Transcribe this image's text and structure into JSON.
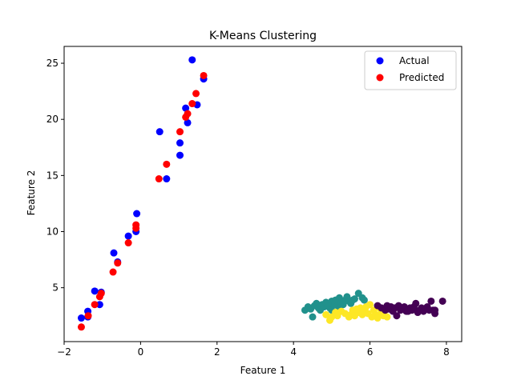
{
  "chart_data": {
    "type": "scatter",
    "title": "K-Means Clustering",
    "xlabel": "Feature 1",
    "ylabel": "Feature 2",
    "xlim": [
      -2,
      8.4
    ],
    "ylim": [
      0.2,
      26.5
    ],
    "xticks": [
      -2,
      0,
      2,
      4,
      6,
      8
    ],
    "yticks": [
      5,
      10,
      15,
      20,
      25
    ],
    "grid": false,
    "legend": "top-right",
    "series": [
      {
        "name": "Actual",
        "color": "#0000ff",
        "points": [
          [
            -1.55,
            2.3
          ],
          [
            -1.38,
            2.9
          ],
          [
            -1.38,
            2.4
          ],
          [
            -1.2,
            4.7
          ],
          [
            -1.07,
            3.5
          ],
          [
            -1.03,
            4.6
          ],
          [
            -0.7,
            8.1
          ],
          [
            -0.6,
            7.3
          ],
          [
            -0.32,
            9.6
          ],
          [
            -0.12,
            10.0
          ],
          [
            -0.1,
            11.6
          ],
          [
            0.5,
            18.9
          ],
          [
            0.68,
            14.7
          ],
          [
            1.03,
            16.8
          ],
          [
            1.03,
            17.9
          ],
          [
            1.18,
            21.0
          ],
          [
            1.23,
            19.7
          ],
          [
            1.35,
            25.3
          ],
          [
            1.48,
            21.3
          ],
          [
            1.65,
            23.6
          ]
        ]
      },
      {
        "name": "Predicted",
        "color": "#ff0000",
        "points": [
          [
            -1.55,
            1.5
          ],
          [
            -1.37,
            2.5
          ],
          [
            -1.2,
            3.5
          ],
          [
            -1.07,
            4.2
          ],
          [
            -1.03,
            4.5
          ],
          [
            -0.72,
            6.4
          ],
          [
            -0.6,
            7.2
          ],
          [
            -0.32,
            9.0
          ],
          [
            -0.12,
            10.3
          ],
          [
            -0.12,
            10.6
          ],
          [
            0.48,
            14.7
          ],
          [
            0.68,
            16.0
          ],
          [
            1.03,
            18.9
          ],
          [
            1.18,
            20.2
          ],
          [
            1.23,
            20.5
          ],
          [
            1.35,
            21.4
          ],
          [
            1.45,
            22.3
          ],
          [
            1.65,
            23.9
          ]
        ]
      }
    ],
    "clusters": [
      {
        "color": "#21918c",
        "points": [
          [
            4.3,
            3.0
          ],
          [
            4.38,
            3.3
          ],
          [
            4.45,
            3.1
          ],
          [
            4.5,
            2.4
          ],
          [
            4.55,
            3.4
          ],
          [
            4.6,
            3.6
          ],
          [
            4.65,
            3.2
          ],
          [
            4.7,
            3.0
          ],
          [
            4.75,
            3.5
          ],
          [
            4.8,
            3.3
          ],
          [
            4.85,
            3.7
          ],
          [
            4.9,
            3.4
          ],
          [
            4.95,
            3.2
          ],
          [
            5.0,
            3.8
          ],
          [
            5.05,
            3.5
          ],
          [
            5.1,
            3.9
          ],
          [
            5.15,
            3.4
          ],
          [
            5.2,
            4.1
          ],
          [
            5.25,
            3.7
          ],
          [
            5.3,
            3.5
          ],
          [
            5.35,
            3.9
          ],
          [
            5.4,
            4.2
          ],
          [
            5.45,
            3.8
          ],
          [
            5.5,
            3.6
          ],
          [
            5.55,
            3.9
          ],
          [
            5.6,
            4.0
          ],
          [
            5.7,
            4.5
          ],
          [
            5.8,
            4.1
          ],
          [
            5.85,
            3.9
          ],
          [
            5.0,
            3.0
          ],
          [
            4.9,
            3.6
          ],
          [
            5.2,
            3.2
          ]
        ]
      },
      {
        "color": "#fde725",
        "points": [
          [
            4.85,
            2.6
          ],
          [
            4.95,
            2.1
          ],
          [
            5.0,
            2.4
          ],
          [
            5.1,
            2.8
          ],
          [
            5.15,
            2.5
          ],
          [
            5.25,
            2.9
          ],
          [
            5.35,
            2.7
          ],
          [
            5.45,
            2.4
          ],
          [
            5.5,
            2.6
          ],
          [
            5.55,
            3.0
          ],
          [
            5.6,
            2.5
          ],
          [
            5.7,
            2.8
          ],
          [
            5.75,
            3.2
          ],
          [
            5.8,
            2.6
          ],
          [
            5.85,
            2.9
          ],
          [
            5.9,
            3.3
          ],
          [
            5.95,
            2.7
          ],
          [
            6.0,
            3.5
          ],
          [
            6.05,
            2.4
          ],
          [
            6.1,
            3.0
          ],
          [
            6.15,
            2.6
          ],
          [
            6.2,
            2.3
          ],
          [
            6.25,
            3.2
          ],
          [
            6.3,
            2.8
          ],
          [
            6.35,
            2.5
          ],
          [
            6.45,
            2.4
          ],
          [
            5.65,
            3.1
          ],
          [
            6.4,
            3.0
          ]
        ]
      },
      {
        "color": "#440154",
        "points": [
          [
            6.2,
            3.4
          ],
          [
            6.3,
            3.2
          ],
          [
            6.4,
            3.0
          ],
          [
            6.45,
            3.4
          ],
          [
            6.5,
            3.1
          ],
          [
            6.55,
            3.3
          ],
          [
            6.6,
            2.9
          ],
          [
            6.65,
            3.2
          ],
          [
            6.7,
            2.5
          ],
          [
            6.75,
            3.4
          ],
          [
            6.8,
            3.0
          ],
          [
            6.85,
            3.2
          ],
          [
            6.9,
            3.3
          ],
          [
            6.95,
            2.9
          ],
          [
            7.0,
            3.1
          ],
          [
            7.05,
            3.2
          ],
          [
            7.1,
            3.0
          ],
          [
            7.15,
            3.3
          ],
          [
            7.2,
            3.6
          ],
          [
            7.25,
            2.8
          ],
          [
            7.3,
            3.0
          ],
          [
            7.35,
            3.2
          ],
          [
            7.4,
            2.9
          ],
          [
            7.45,
            3.1
          ],
          [
            7.5,
            3.3
          ],
          [
            7.55,
            3.0
          ],
          [
            7.6,
            3.8
          ],
          [
            7.65,
            3.0
          ],
          [
            7.7,
            2.7
          ],
          [
            7.7,
            3.0
          ],
          [
            7.9,
            3.8
          ],
          [
            7.0,
            2.9
          ]
        ]
      }
    ]
  }
}
